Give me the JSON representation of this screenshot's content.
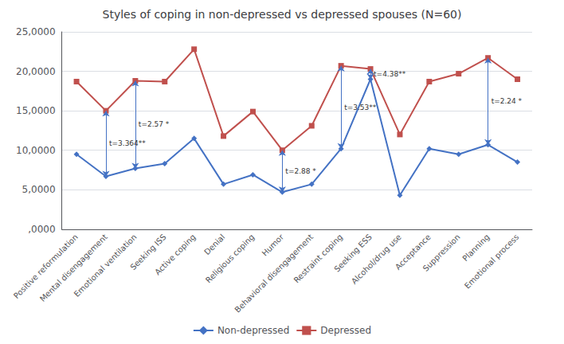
{
  "chart_data": {
    "type": "line",
    "title": "Styles of coping in non-depressed vs depressed spouses (N=60)",
    "categories": [
      "Positive reformulation",
      "Mental disengagement",
      "Emotional ventilation",
      "Seeking ISS",
      "Active coping",
      "Denial",
      "Religious coping",
      "Humor",
      "Behavioral disengagement",
      "Restraint coping",
      "Seeking ESS",
      "Alcohol/drug use",
      "Acceptance",
      "Suppression",
      "Planning",
      "Emotional process"
    ],
    "series": [
      {
        "name": "Non-depressed",
        "color": "#4472C4",
        "marker": "diamond",
        "values": [
          9500,
          6700,
          7700,
          8300,
          11500,
          5700,
          6900,
          4700,
          5700,
          10200,
          19000,
          4300,
          10200,
          9500,
          10700,
          8500
        ]
      },
      {
        "name": "Depressed",
        "color": "#C0504D",
        "marker": "square",
        "values": [
          18700,
          15000,
          18800,
          18700,
          22800,
          11800,
          14900,
          10000,
          13100,
          20700,
          20300,
          12000,
          18700,
          19700,
          21700,
          19000
        ]
      }
    ],
    "ylim": [
      0,
      25000
    ],
    "yticks": [
      {
        "value": 0,
        "label": ",0000"
      },
      {
        "value": 5000,
        "label": "5,0000"
      },
      {
        "value": 10000,
        "label": "10,0000"
      },
      {
        "value": 15000,
        "label": "15,0000"
      },
      {
        "value": 20000,
        "label": "20,0000"
      },
      {
        "value": 25000,
        "label": "25,0000"
      }
    ],
    "annotations": [
      {
        "text": "t=3.364**",
        "category": "Mental disengagement"
      },
      {
        "text": "t=2.57 *",
        "category": "Emotional ventilation"
      },
      {
        "text": "t=2.88 *",
        "category": "Humor"
      },
      {
        "text": "t=3.53**",
        "category": "Restraint coping"
      },
      {
        "text": "t=4.38**",
        "category": "Seeking ESS"
      },
      {
        "text": "t=2.24 *",
        "category": "Planning"
      }
    ],
    "grid": true,
    "legend": "bottom"
  }
}
